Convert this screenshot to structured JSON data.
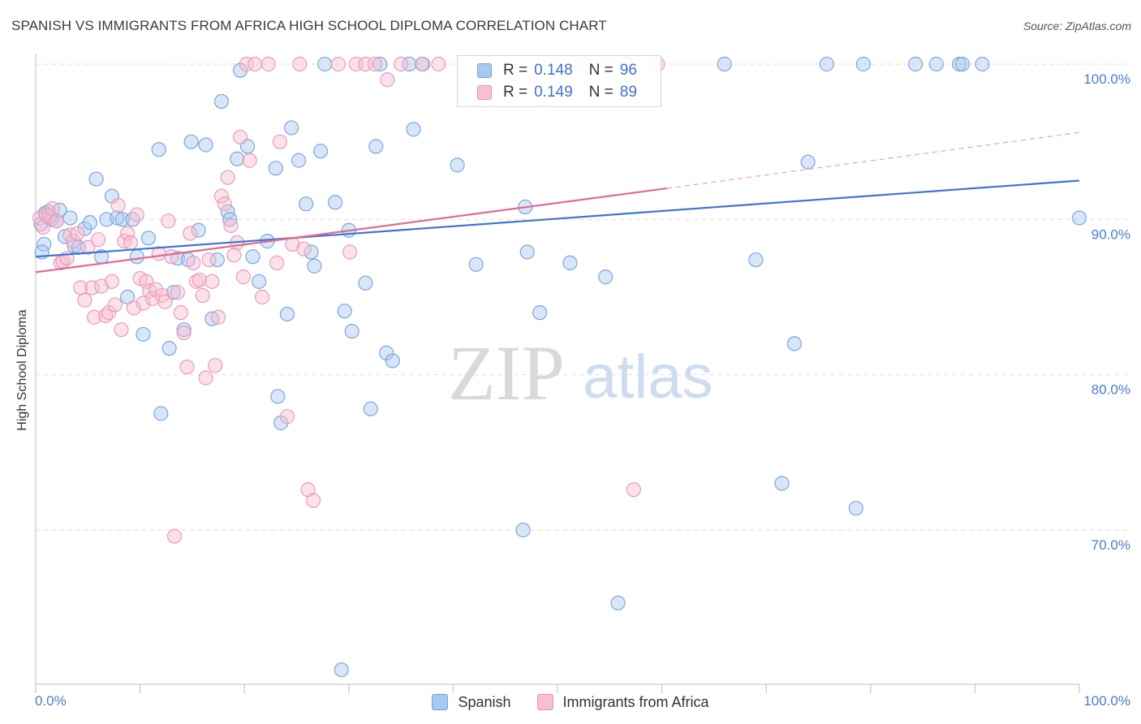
{
  "header": {
    "title": "SPANISH VS IMMIGRANTS FROM AFRICA HIGH SCHOOL DIPLOMA CORRELATION CHART",
    "source": "Source: ZipAtlas.com"
  },
  "watermark": {
    "zip": "ZIP",
    "atlas": "atlas"
  },
  "legend": {
    "rows": [
      {
        "r_label": "R =",
        "r_value": "0.148",
        "n_label": "N =",
        "n_value": "96",
        "color": "#a9c8f0",
        "border": "#6f9fdc"
      },
      {
        "r_label": "R =",
        "r_value": "0.149",
        "n_label": "N =",
        "n_value": "89",
        "color": "#f7bfd1",
        "border": "#e891b0"
      }
    ]
  },
  "bottom_legend": {
    "items": [
      {
        "label": "Spanish",
        "color": "#a9c8f0",
        "border": "#6f9fdc"
      },
      {
        "label": "Immigrants from Africa",
        "color": "#f7bfd1",
        "border": "#e891b0"
      }
    ]
  },
  "chart_data": {
    "type": "scatter",
    "title": "SPANISH VS IMMIGRANTS FROM AFRICA HIGH SCHOOL DIPLOMA CORRELATION CHART",
    "xlabel": "",
    "ylabel": "High School Diploma",
    "xlim": [
      0,
      100
    ],
    "ylim": [
      60,
      101.5
    ],
    "x_tick_labels": [
      "0.0%",
      "100.0%"
    ],
    "y_ticks": [
      70,
      80,
      90,
      100
    ],
    "y_tick_labels": [
      "70.0%",
      "80.0%",
      "90.0%",
      "100.0%"
    ],
    "grid": "horizontal dashed",
    "legend_position": "top-center",
    "series": [
      {
        "name": "Spanish",
        "color": "#7aa7e0",
        "fill": "rgba(169,200,240,0.45)",
        "trend": {
          "x": [
            0,
            100
          ],
          "y": [
            87.6,
            92.5
          ],
          "color": "#3d74d4",
          "style": "solid"
        },
        "points": [
          [
            0.5,
            89.7
          ],
          [
            0.8,
            88.4
          ],
          [
            0.6,
            87.9
          ],
          [
            0.9,
            90.4
          ],
          [
            1.2,
            90.5
          ],
          [
            1.5,
            90.0
          ],
          [
            2.0,
            89.9
          ],
          [
            2.3,
            90.6
          ],
          [
            2.8,
            88.9
          ],
          [
            3.3,
            90.1
          ],
          [
            3.7,
            88.3
          ],
          [
            4.1,
            88.2
          ],
          [
            4.7,
            89.4
          ],
          [
            5.2,
            89.8
          ],
          [
            5.8,
            92.6
          ],
          [
            6.3,
            87.6
          ],
          [
            6.8,
            90.0
          ],
          [
            7.3,
            91.5
          ],
          [
            7.8,
            90.1
          ],
          [
            8.3,
            90.0
          ],
          [
            8.8,
            85.0
          ],
          [
            9.3,
            90.0
          ],
          [
            9.7,
            87.6
          ],
          [
            10.3,
            82.6
          ],
          [
            10.8,
            88.8
          ],
          [
            11.8,
            94.5
          ],
          [
            12.0,
            77.5
          ],
          [
            12.8,
            81.7
          ],
          [
            13.2,
            85.3
          ],
          [
            13.6,
            87.5
          ],
          [
            14.2,
            82.9
          ],
          [
            14.6,
            87.4
          ],
          [
            14.9,
            95.0
          ],
          [
            15.6,
            89.3
          ],
          [
            16.3,
            94.8
          ],
          [
            16.9,
            83.6
          ],
          [
            17.4,
            87.4
          ],
          [
            17.8,
            97.6
          ],
          [
            18.4,
            90.5
          ],
          [
            18.6,
            90.0
          ],
          [
            19.3,
            93.9
          ],
          [
            19.6,
            99.6
          ],
          [
            20.3,
            94.7
          ],
          [
            20.8,
            87.6
          ],
          [
            21.4,
            86.0
          ],
          [
            22.2,
            88.6
          ],
          [
            23.0,
            93.3
          ],
          [
            23.2,
            78.6
          ],
          [
            23.5,
            76.9
          ],
          [
            24.1,
            83.9
          ],
          [
            24.5,
            95.9
          ],
          [
            25.2,
            93.8
          ],
          [
            25.9,
            91.0
          ],
          [
            26.4,
            87.9
          ],
          [
            26.7,
            87.0
          ],
          [
            27.3,
            94.4
          ],
          [
            27.7,
            100.0
          ],
          [
            28.7,
            91.1
          ],
          [
            29.3,
            61.0
          ],
          [
            29.6,
            84.1
          ],
          [
            30.0,
            89.3
          ],
          [
            30.3,
            82.8
          ],
          [
            31.6,
            85.9
          ],
          [
            32.1,
            77.8
          ],
          [
            32.6,
            94.7
          ],
          [
            33.0,
            100.0
          ],
          [
            33.6,
            81.4
          ],
          [
            34.2,
            80.9
          ],
          [
            35.8,
            100.0
          ],
          [
            36.2,
            95.8
          ],
          [
            37.1,
            100.0
          ],
          [
            40.4,
            93.5
          ],
          [
            42.2,
            87.1
          ],
          [
            46.7,
            70.0
          ],
          [
            46.9,
            90.8
          ],
          [
            47.1,
            87.9
          ],
          [
            48.3,
            84.0
          ],
          [
            51.2,
            87.2
          ],
          [
            52.6,
            100.0
          ],
          [
            54.6,
            86.3
          ],
          [
            55.8,
            65.3
          ],
          [
            56.6,
            100.0
          ],
          [
            66.0,
            100.0
          ],
          [
            69.0,
            87.4
          ],
          [
            71.5,
            73.0
          ],
          [
            72.7,
            82.0
          ],
          [
            74.0,
            93.7
          ],
          [
            75.8,
            100.0
          ],
          [
            78.6,
            71.4
          ],
          [
            79.3,
            100.0
          ],
          [
            84.3,
            100.0
          ],
          [
            86.3,
            100.0
          ],
          [
            88.5,
            100.0
          ],
          [
            88.8,
            100.0
          ],
          [
            90.7,
            100.0
          ],
          [
            100.0,
            90.1
          ]
        ]
      },
      {
        "name": "Immigrants from Africa",
        "color": "#ec9ab7",
        "fill": "rgba(247,191,209,0.45)",
        "trend": {
          "x": [
            0,
            60.5
          ],
          "y": [
            86.6,
            92.0
          ],
          "color": "#e06a95",
          "style": "solid"
        },
        "trend_extension": {
          "x": [
            60.5,
            100
          ],
          "y": [
            92.0,
            95.6
          ],
          "color": "#e8a0ba",
          "style": "dashed"
        },
        "points": [
          [
            0.4,
            90.1
          ],
          [
            0.7,
            89.5
          ],
          [
            1.0,
            90.3
          ],
          [
            1.3,
            90.2
          ],
          [
            1.6,
            90.7
          ],
          [
            2.0,
            89.9
          ],
          [
            2.4,
            87.2
          ],
          [
            2.6,
            87.3
          ],
          [
            3.0,
            87.5
          ],
          [
            3.3,
            89.0
          ],
          [
            3.6,
            88.6
          ],
          [
            4.0,
            89.1
          ],
          [
            4.3,
            85.6
          ],
          [
            4.7,
            84.8
          ],
          [
            5.0,
            88.2
          ],
          [
            5.4,
            85.6
          ],
          [
            5.6,
            83.7
          ],
          [
            6.0,
            88.7
          ],
          [
            6.3,
            85.7
          ],
          [
            6.7,
            83.8
          ],
          [
            7.0,
            84.0
          ],
          [
            7.3,
            86.0
          ],
          [
            7.6,
            84.5
          ],
          [
            7.9,
            90.9
          ],
          [
            8.2,
            82.9
          ],
          [
            8.5,
            88.6
          ],
          [
            8.8,
            89.1
          ],
          [
            9.1,
            88.5
          ],
          [
            9.4,
            84.3
          ],
          [
            9.7,
            90.3
          ],
          [
            10.0,
            86.2
          ],
          [
            10.3,
            84.6
          ],
          [
            10.6,
            86.0
          ],
          [
            10.9,
            85.4
          ],
          [
            11.2,
            84.9
          ],
          [
            11.5,
            85.5
          ],
          [
            11.8,
            87.8
          ],
          [
            12.1,
            85.1
          ],
          [
            12.4,
            84.7
          ],
          [
            12.7,
            89.9
          ],
          [
            13.0,
            87.6
          ],
          [
            13.3,
            69.6
          ],
          [
            13.6,
            85.3
          ],
          [
            13.9,
            84.0
          ],
          [
            14.2,
            82.7
          ],
          [
            14.5,
            80.5
          ],
          [
            14.8,
            89.1
          ],
          [
            15.1,
            87.2
          ],
          [
            15.4,
            86.0
          ],
          [
            15.7,
            86.1
          ],
          [
            16.0,
            85.1
          ],
          [
            16.3,
            79.8
          ],
          [
            16.6,
            87.4
          ],
          [
            16.9,
            86.0
          ],
          [
            17.2,
            80.6
          ],
          [
            17.5,
            83.7
          ],
          [
            17.8,
            91.5
          ],
          [
            18.1,
            91.0
          ],
          [
            18.4,
            92.7
          ],
          [
            18.7,
            89.6
          ],
          [
            19.0,
            87.7
          ],
          [
            19.3,
            88.5
          ],
          [
            19.6,
            95.3
          ],
          [
            19.9,
            86.3
          ],
          [
            20.2,
            100.0
          ],
          [
            20.5,
            93.8
          ],
          [
            21.0,
            100.0
          ],
          [
            21.7,
            85.0
          ],
          [
            22.3,
            100.0
          ],
          [
            23.1,
            87.2
          ],
          [
            23.4,
            95.0
          ],
          [
            24.1,
            77.3
          ],
          [
            24.6,
            88.4
          ],
          [
            25.3,
            100.0
          ],
          [
            25.7,
            88.1
          ],
          [
            26.1,
            72.6
          ],
          [
            26.6,
            71.9
          ],
          [
            29.0,
            100.0
          ],
          [
            30.1,
            87.9
          ],
          [
            30.7,
            100.0
          ],
          [
            31.6,
            100.0
          ],
          [
            32.5,
            100.0
          ],
          [
            33.7,
            99.0
          ],
          [
            35.0,
            100.0
          ],
          [
            37.0,
            100.0
          ],
          [
            38.6,
            100.0
          ],
          [
            54.5,
            100.0
          ],
          [
            57.3,
            72.6
          ],
          [
            59.6,
            100.0
          ]
        ]
      }
    ]
  }
}
